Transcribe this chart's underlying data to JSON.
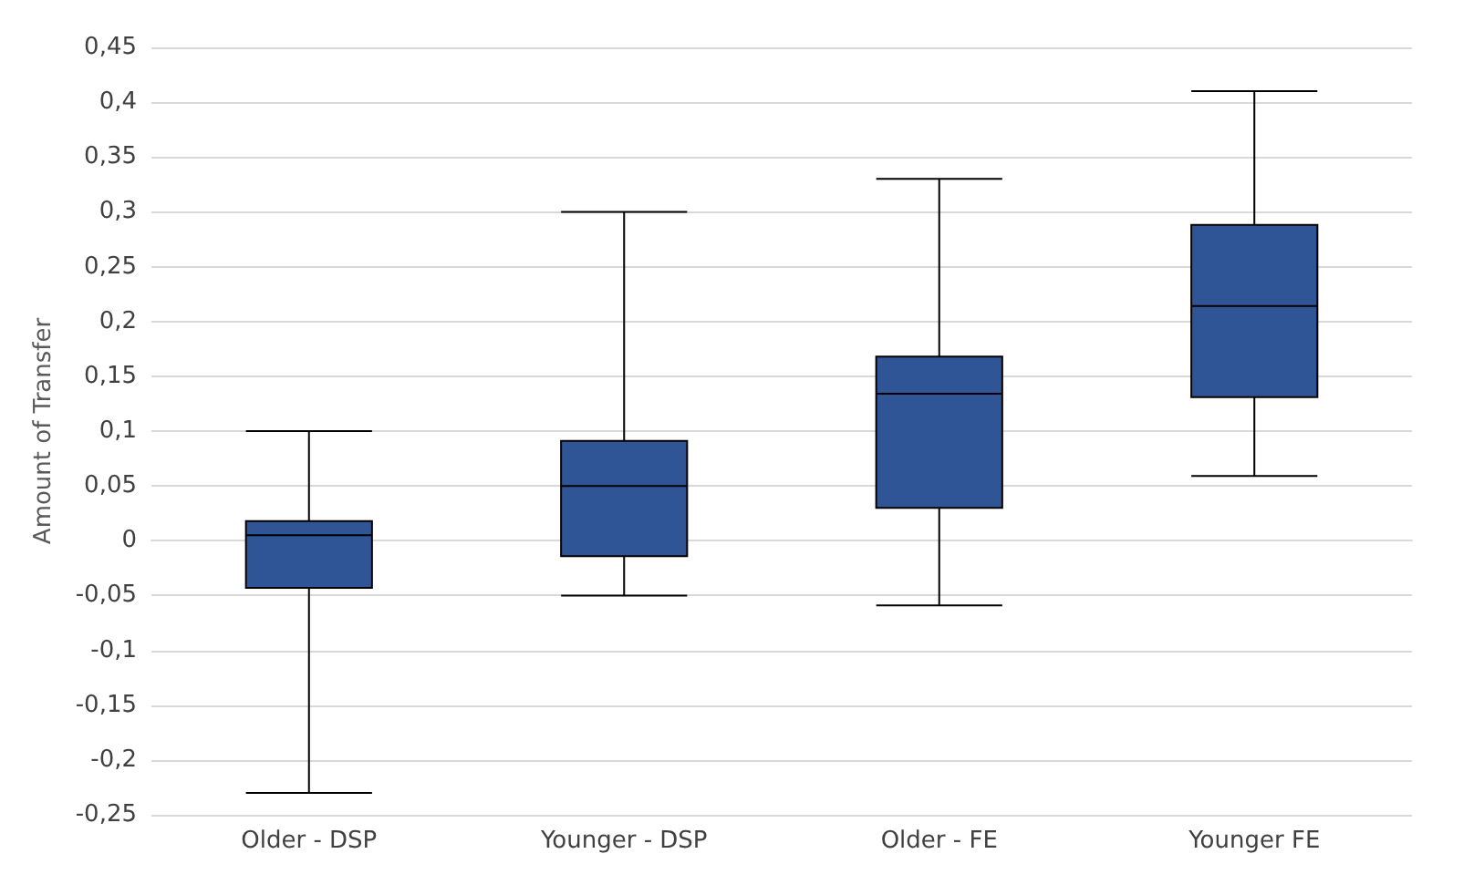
{
  "chart_data": {
    "type": "box",
    "ylabel": "Amount of Transfer",
    "categories": [
      "Older - DSP",
      "Younger - DSP",
      "Older - FE",
      "Younger FE"
    ],
    "series": [
      {
        "color": "#2f5597",
        "boxes": [
          {
            "low": -0.23,
            "q1": -0.043,
            "median": 0.005,
            "q3": 0.018,
            "high": 0.1
          },
          {
            "low": -0.05,
            "q1": -0.014,
            "median": 0.05,
            "q3": 0.091,
            "high": 0.3
          },
          {
            "low": -0.059,
            "q1": 0.03,
            "median": 0.134,
            "q3": 0.168,
            "high": 0.33
          },
          {
            "low": 0.059,
            "q1": 0.131,
            "median": 0.214,
            "q3": 0.288,
            "high": 0.41
          }
        ]
      }
    ],
    "ylim": [
      -0.25,
      0.45
    ],
    "yticks": [
      {
        "value": -0.25,
        "label": "-0,25"
      },
      {
        "value": -0.2,
        "label": "-0,2"
      },
      {
        "value": -0.15,
        "label": "-0,15"
      },
      {
        "value": -0.1,
        "label": "-0,1"
      },
      {
        "value": -0.05,
        "label": "-0,05"
      },
      {
        "value": 0,
        "label": "0"
      },
      {
        "value": 0.05,
        "label": "0,05"
      },
      {
        "value": 0.1,
        "label": "0,1"
      },
      {
        "value": 0.15,
        "label": "0,15"
      },
      {
        "value": 0.2,
        "label": "0,2"
      },
      {
        "value": 0.25,
        "label": "0,25"
      },
      {
        "value": 0.3,
        "label": "0,3"
      },
      {
        "value": 0.35,
        "label": "0,35"
      },
      {
        "value": 0.4,
        "label": "0,4"
      },
      {
        "value": 0.45,
        "label": "0,45"
      }
    ],
    "grid": "y"
  }
}
